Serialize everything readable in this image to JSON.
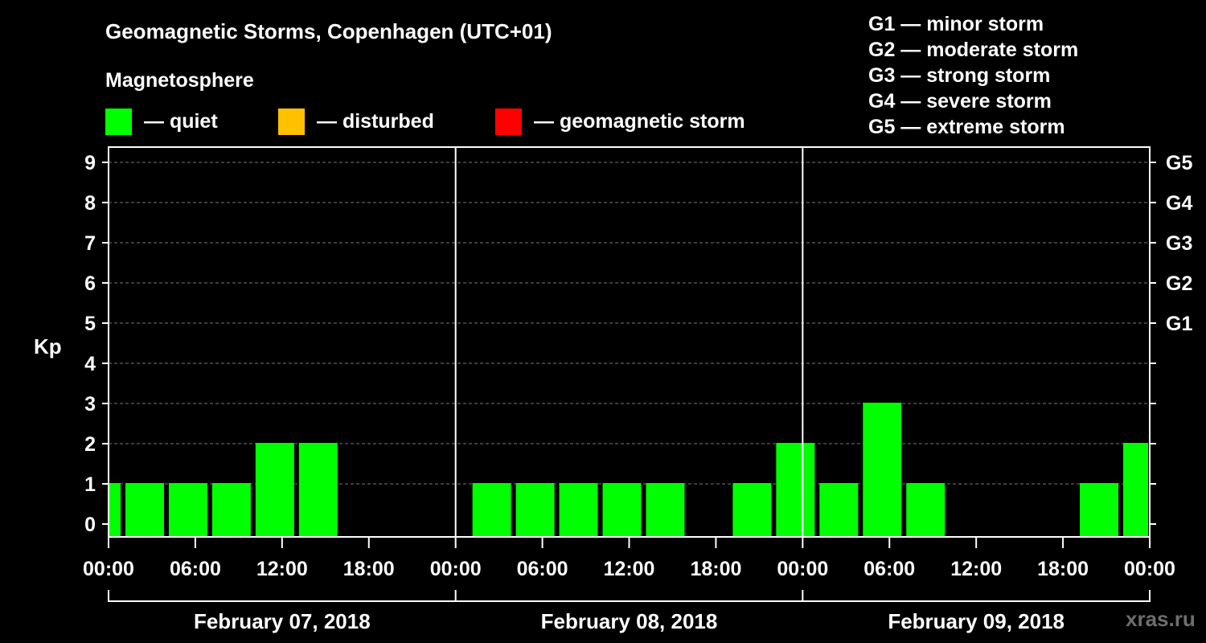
{
  "title": "Geomagnetic Storms, Copenhagen (UTC+01)",
  "subtitle": "Magnetosphere",
  "legend": [
    {
      "label": "— quiet",
      "color": "#00ff00"
    },
    {
      "label": "— disturbed",
      "color": "#ffc000"
    },
    {
      "label": "— geomagnetic storm",
      "color": "#ff0000"
    }
  ],
  "storm_legend": [
    "G1 — minor storm",
    "G2 — moderate storm",
    "G3 — strong storm",
    "G4 — severe storm",
    "G5 — extreme storm"
  ],
  "credit": "xras.ru",
  "chart_data": {
    "type": "bar",
    "ylabel": "Kp",
    "ylim": [
      0,
      9
    ],
    "y_ticks": [
      "0",
      "1",
      "2",
      "3",
      "4",
      "5",
      "6",
      "7",
      "8",
      "9"
    ],
    "right_ticks": [
      {
        "value": 5,
        "label": "G1"
      },
      {
        "value": 6,
        "label": "G2"
      },
      {
        "value": 7,
        "label": "G3"
      },
      {
        "value": 8,
        "label": "G4"
      },
      {
        "value": 9,
        "label": "G5"
      }
    ],
    "x_tick_labels": [
      "00:00",
      "06:00",
      "12:00",
      "18:00",
      "00:00",
      "06:00",
      "12:00",
      "18:00",
      "00:00",
      "06:00",
      "12:00",
      "18:00",
      "00:00"
    ],
    "days": [
      "February 07, 2018",
      "February 08, 2018",
      "February 09, 2018"
    ],
    "hours_total": 72,
    "grid": true,
    "bar_color": "#00ff00",
    "bars": [
      {
        "start": 0,
        "end": 1,
        "value": 1
      },
      {
        "start": 1,
        "end": 4,
        "value": 1
      },
      {
        "start": 4,
        "end": 7,
        "value": 1
      },
      {
        "start": 7,
        "end": 10,
        "value": 1
      },
      {
        "start": 10,
        "end": 13,
        "value": 2
      },
      {
        "start": 13,
        "end": 16,
        "value": 2
      },
      {
        "start": 25,
        "end": 28,
        "value": 1
      },
      {
        "start": 28,
        "end": 31,
        "value": 1
      },
      {
        "start": 31,
        "end": 34,
        "value": 1
      },
      {
        "start": 34,
        "end": 37,
        "value": 1
      },
      {
        "start": 37,
        "end": 40,
        "value": 1
      },
      {
        "start": 43,
        "end": 46,
        "value": 1
      },
      {
        "start": 46,
        "end": 49,
        "value": 2
      },
      {
        "start": 49,
        "end": 52,
        "value": 1
      },
      {
        "start": 52,
        "end": 55,
        "value": 3
      },
      {
        "start": 55,
        "end": 58,
        "value": 1
      },
      {
        "start": 67,
        "end": 70,
        "value": 1
      },
      {
        "start": 70,
        "end": 72,
        "value": 2
      }
    ]
  }
}
